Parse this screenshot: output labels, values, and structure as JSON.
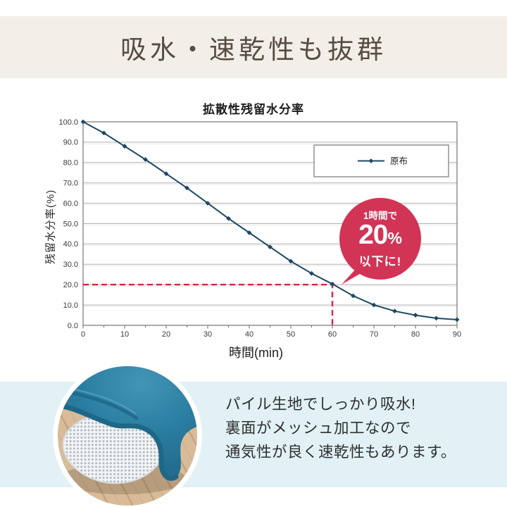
{
  "theme": {
    "header_band_bg": "#f2efe9",
    "header_text": "#584c42",
    "blue_band_bg": "#e1f1f5",
    "chart_line": "#1d4863",
    "grid_color": "#b0b0b0",
    "plot_border": "#808080",
    "axis_text": "#3a3a3a",
    "red_dash": "#d02a47",
    "badge_bg": "#d23456",
    "badge_text": "#ffffff",
    "caption_text": "#2f2f2f",
    "photo_teal": "#2a7ea1",
    "photo_teal_dark": "#1e6787",
    "photo_wood": "#d8bc9a",
    "photo_wood_line": "#c3a47c",
    "photo_mesh_bg": "#f3f5f6",
    "photo_mesh_dot": "#b3bac1"
  },
  "header": {
    "title": "吸水・速乾性も抜群"
  },
  "chart_data": {
    "type": "line",
    "title": "拡散性残留水分率",
    "xlabel": "時間(min)",
    "ylabel": "残留水分率(%)",
    "xlim": [
      0,
      90
    ],
    "ylim": [
      0,
      100
    ],
    "x_ticks": [
      0,
      10,
      20,
      30,
      40,
      50,
      60,
      70,
      80,
      90
    ],
    "y_tick_labels": [
      "0.0",
      "10.0",
      "20.0",
      "30.0",
      "40.0",
      "50.0",
      "60.0",
      "70.0",
      "80.0",
      "90.0",
      "100.0"
    ],
    "grid": true,
    "legend": {
      "position": "upper-right",
      "entries": [
        {
          "label": "原布",
          "marker": "diamond"
        }
      ]
    },
    "series": [
      {
        "name": "原布",
        "x": [
          0,
          5,
          10,
          15,
          20,
          25,
          30,
          35,
          40,
          45,
          50,
          55,
          60,
          65,
          70,
          75,
          80,
          85,
          90
        ],
        "y": [
          100,
          94.5,
          88,
          81.5,
          74.5,
          67.5,
          60,
          52.5,
          45.5,
          38.5,
          31.5,
          25.5,
          20.3,
          14.5,
          10,
          7,
          5,
          3.5,
          2.8
        ]
      }
    ],
    "annotations": {
      "threshold_lines": {
        "style": "dashed",
        "h": {
          "y": 20,
          "x_from": 0,
          "x_to": 60
        },
        "v": {
          "x": 60,
          "y_from": 0,
          "y_to": 20
        }
      },
      "badge": {
        "top": "1時間で",
        "value": "20",
        "unit": "%",
        "bottom": "以下に!"
      }
    }
  },
  "caption": {
    "lines": [
      "パイル生地でしっかり吸水!",
      "裏面がメッシュ加工なので",
      "通気性が良く速乾性もあります。"
    ]
  },
  "photo": {
    "alt": "teal pile mat corner folded back showing white mesh backing on wooden floor"
  }
}
